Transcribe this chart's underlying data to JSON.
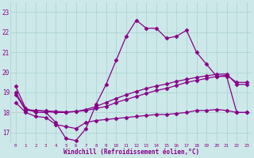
{
  "xlabel": "Windchill (Refroidissement éolien,°C)",
  "bg_color": "#cce8e8",
  "grid_color": "#aad0d0",
  "line_color": "#880088",
  "x_ticks": [
    0,
    1,
    2,
    3,
    4,
    5,
    6,
    7,
    8,
    9,
    10,
    11,
    12,
    13,
    14,
    15,
    16,
    17,
    18,
    19,
    20,
    21,
    22,
    23
  ],
  "y_ticks": [
    17,
    18,
    19,
    20,
    21,
    22,
    23
  ],
  "xlim": [
    -0.5,
    23.5
  ],
  "ylim": [
    16.5,
    23.5
  ],
  "line1_y": [
    19.3,
    18.2,
    18.0,
    18.0,
    17.5,
    16.7,
    16.6,
    17.2,
    18.4,
    19.4,
    20.6,
    21.8,
    22.6,
    22.2,
    22.2,
    21.7,
    21.8,
    22.1,
    21.0,
    20.4,
    19.8,
    19.8,
    18.0,
    18.0
  ],
  "line2_y": [
    18.9,
    18.1,
    18.1,
    18.05,
    18.0,
    18.0,
    18.05,
    18.1,
    18.2,
    18.3,
    18.5,
    18.65,
    18.8,
    18.95,
    19.1,
    19.2,
    19.35,
    19.5,
    19.6,
    19.7,
    19.8,
    19.85,
    19.5,
    19.5
  ],
  "line3_y": [
    18.5,
    18.0,
    17.8,
    17.75,
    17.4,
    17.3,
    17.2,
    17.5,
    17.6,
    17.65,
    17.7,
    17.75,
    17.8,
    17.85,
    17.9,
    17.9,
    17.95,
    18.0,
    18.1,
    18.1,
    18.15,
    18.1,
    18.0,
    18.0
  ],
  "line4_y": [
    19.0,
    18.15,
    18.1,
    18.08,
    18.05,
    18.03,
    18.05,
    18.15,
    18.3,
    18.5,
    18.7,
    18.88,
    19.05,
    19.2,
    19.32,
    19.42,
    19.55,
    19.65,
    19.75,
    19.83,
    19.9,
    19.92,
    19.4,
    19.4
  ]
}
